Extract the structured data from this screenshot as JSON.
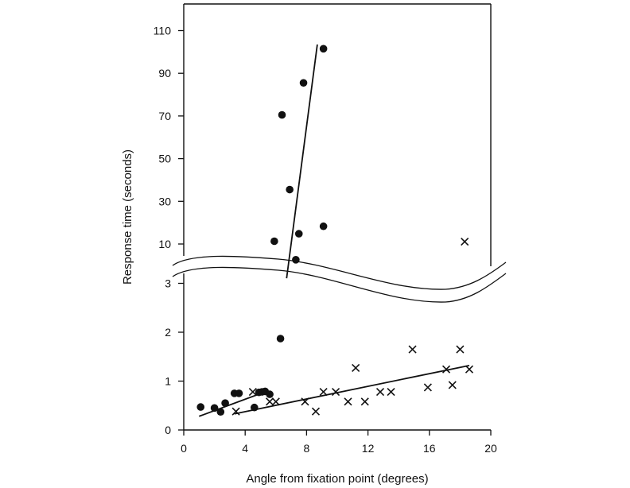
{
  "chart_data": {
    "type": "scatter",
    "title": "",
    "xlabel": "Angle from fixation point (degrees)",
    "ylabel": "Response time (seconds)",
    "xlim": [
      0,
      20
    ],
    "x_ticks": [
      "0",
      "4",
      "8",
      "12",
      "16",
      "20"
    ],
    "y_ticks_lower": [
      "0",
      "1",
      "2",
      "3"
    ],
    "y_ticks_upper": [
      "10",
      "30",
      "50",
      "70",
      "90",
      "110"
    ],
    "y_scale": "broken axis: 0 to 3 linear below break, 3 to about 115 compressed above break",
    "grid": false,
    "legend": "none",
    "series": [
      {
        "marker": "filled-circle",
        "points": [
          [
            1.1,
            0.47
          ],
          [
            2.0,
            0.45
          ],
          [
            2.4,
            0.37
          ],
          [
            2.7,
            0.55
          ],
          [
            3.3,
            0.75
          ],
          [
            3.6,
            0.75
          ],
          [
            4.6,
            0.46
          ],
          [
            4.9,
            0.77
          ],
          [
            5.1,
            0.78
          ],
          [
            5.3,
            0.79
          ],
          [
            5.6,
            0.73
          ],
          [
            6.3,
            1.87
          ],
          [
            5.9,
            11.3
          ],
          [
            6.4,
            70.5
          ],
          [
            6.9,
            35.5
          ],
          [
            7.3,
            7.2
          ],
          [
            7.5,
            14.8
          ],
          [
            7.8,
            85.5
          ],
          [
            9.1,
            101.5
          ],
          [
            9.1,
            18.3
          ]
        ]
      },
      {
        "marker": "x",
        "points": [
          [
            3.4,
            0.38
          ],
          [
            4.5,
            0.78
          ],
          [
            5.6,
            0.58
          ],
          [
            6.0,
            0.58
          ],
          [
            7.9,
            0.58
          ],
          [
            8.6,
            0.38
          ],
          [
            9.1,
            0.78
          ],
          [
            9.9,
            0.78
          ],
          [
            10.7,
            0.58
          ],
          [
            11.2,
            1.27
          ],
          [
            11.8,
            0.58
          ],
          [
            12.8,
            0.78
          ],
          [
            13.5,
            0.78
          ],
          [
            14.9,
            1.65
          ],
          [
            15.9,
            0.87
          ],
          [
            17.1,
            1.24
          ],
          [
            17.5,
            0.92
          ],
          [
            18.0,
            1.65
          ],
          [
            18.6,
            1.24
          ],
          [
            18.3,
            11.1
          ]
        ]
      }
    ],
    "fit_lines": [
      {
        "from": [
          1.0,
          0.28
        ],
        "to": [
          5.3,
          0.78
        ]
      },
      {
        "from": [
          3.3,
          0.33
        ],
        "to": [
          18.6,
          1.32
        ]
      },
      {
        "from": [
          6.7,
          3.9
        ],
        "to": [
          8.7,
          103.5
        ]
      }
    ]
  }
}
